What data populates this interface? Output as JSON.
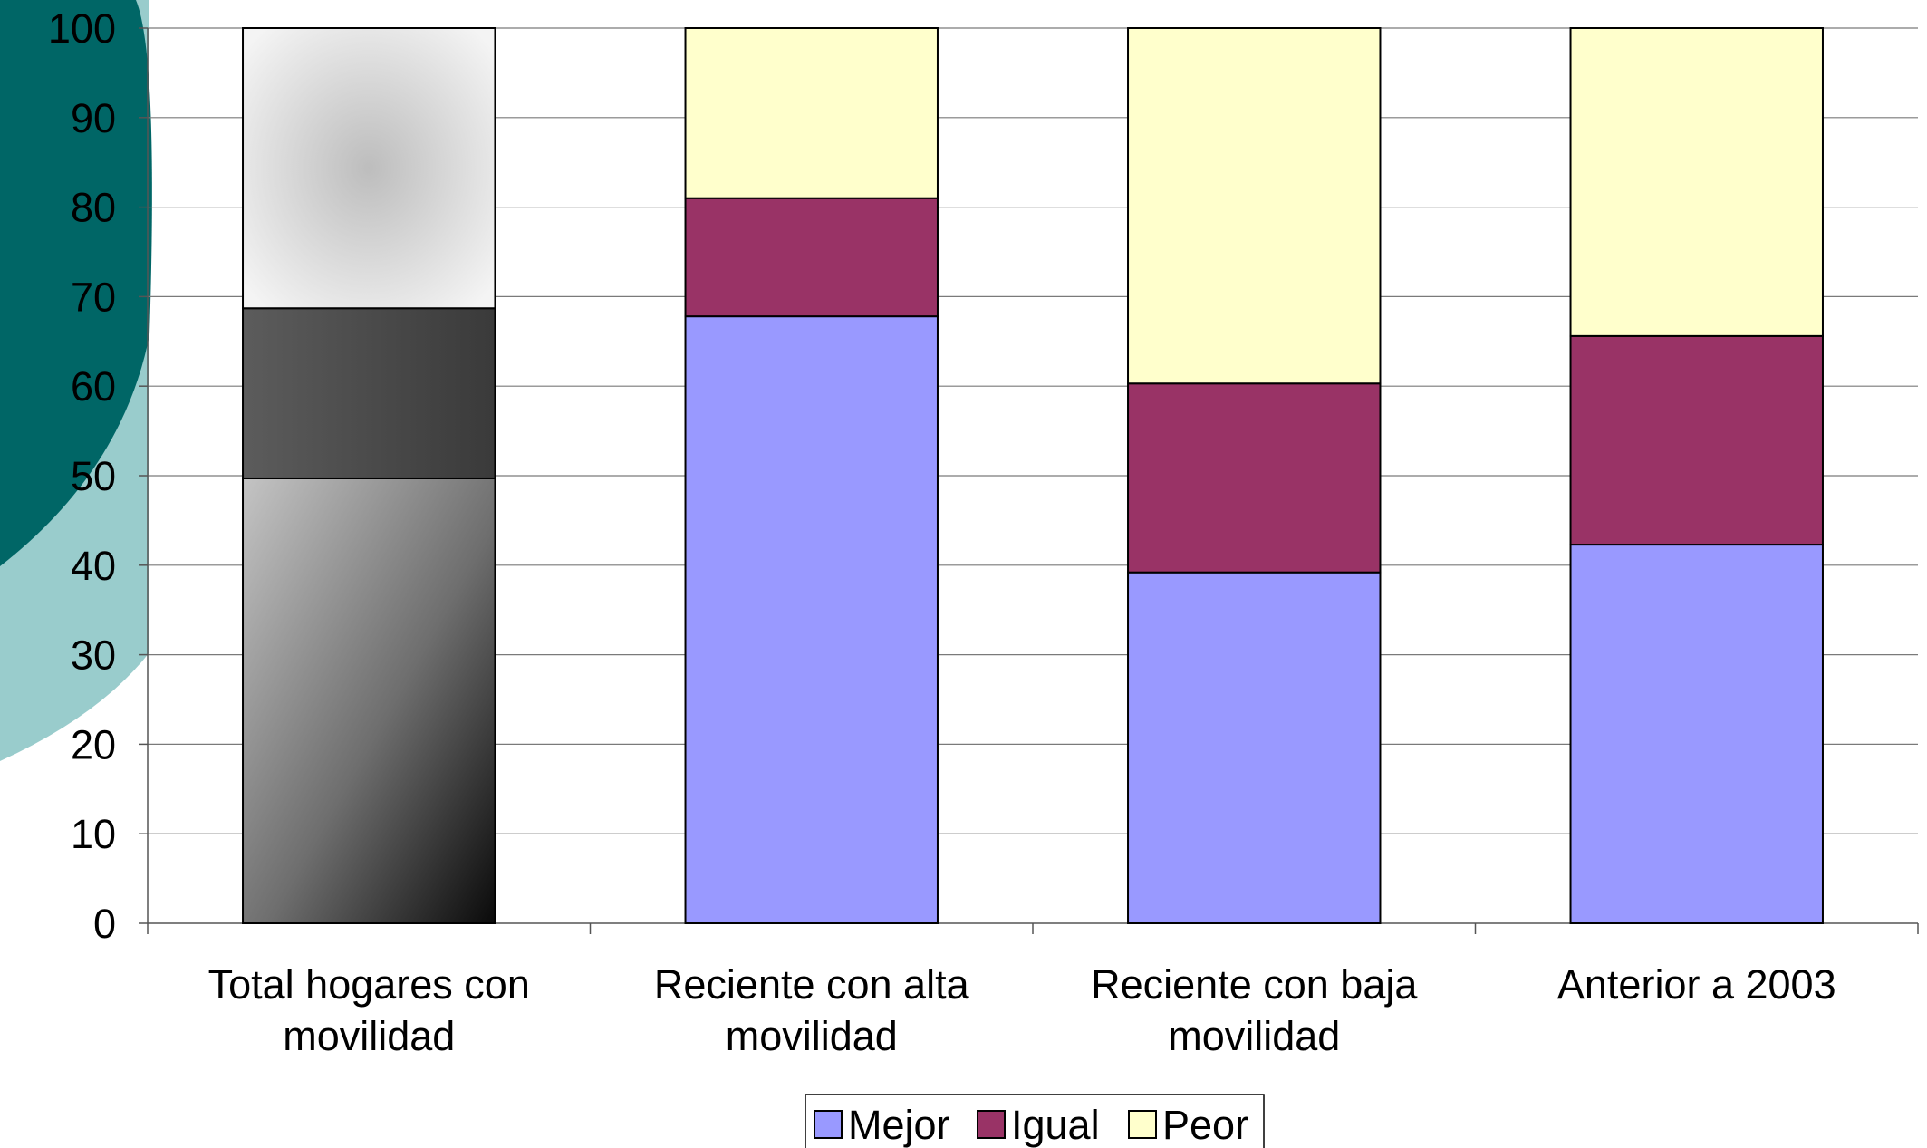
{
  "chart_data": {
    "type": "bar",
    "stacked": true,
    "categories": [
      [
        "Total hogares con",
        "movilidad"
      ],
      [
        "Reciente con alta",
        "movilidad"
      ],
      [
        "Reciente con baja",
        "movilidad"
      ],
      [
        "Anterior a 2003"
      ]
    ],
    "series": [
      {
        "name": "Mejor",
        "color": "#9999ff",
        "values": [
          49.7,
          67.8,
          39.2,
          42.3
        ]
      },
      {
        "name": "Igual",
        "color": "#993366",
        "values": [
          19.0,
          13.2,
          21.1,
          23.3
        ]
      },
      {
        "name": "Peor",
        "color": "#ffffcc",
        "values": [
          31.3,
          19.0,
          39.7,
          34.4
        ]
      }
    ],
    "ylim": [
      0,
      100
    ],
    "yticks": [
      "0",
      "10",
      "20",
      "30",
      "40",
      "50",
      "60",
      "70",
      "80",
      "90",
      "100"
    ],
    "grid": true,
    "legend_position": "bottom",
    "first_bar_style": "grayscale gradient",
    "decoration_colors": [
      "#006666",
      "#99cccc"
    ]
  }
}
